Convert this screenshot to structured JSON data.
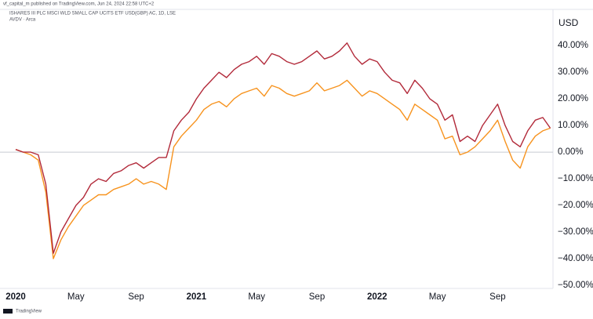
{
  "header": {
    "published": "vf_capital_m published on TradingView.com, Jun 24, 2024 22:58 UTC+2",
    "symbol": "ISHARES III PLC MSCI WLD SMALL CAP UCITS ETF USD(GBP) AC, 1D, LSE",
    "compare": "AVDV · Arca",
    "footer": "TradingView"
  },
  "chart_data": {
    "type": "line",
    "currency": "USD",
    "categories": [
      "2020",
      null,
      null,
      null,
      null,
      null,
      null,
      null,
      "May",
      null,
      null,
      null,
      null,
      null,
      null,
      null,
      "Sep",
      null,
      null,
      null,
      null,
      null,
      null,
      null,
      "2021",
      null,
      null,
      null,
      null,
      null,
      null,
      null,
      "May",
      null,
      null,
      null,
      null,
      null,
      null,
      null,
      "Sep",
      null,
      null,
      null,
      null,
      null,
      null,
      null,
      "2022",
      null,
      null,
      null,
      null,
      null,
      null,
      null,
      "May",
      null,
      null,
      null,
      null,
      null,
      null,
      null,
      "Sep",
      null,
      null,
      null,
      null,
      null,
      null,
      null
    ],
    "series": [
      {
        "name": "ISHARES III PLC MSCI WLD SMALL CAP UCITS ETF USD(GBP) AC",
        "color": "#b22a3a",
        "values": [
          1,
          0,
          0,
          -1,
          -12,
          -38,
          -30,
          -25,
          -20,
          -17,
          -12,
          -10,
          -11,
          -8,
          -7,
          -5,
          -4,
          -6,
          -4,
          -2,
          -2,
          8,
          12,
          15,
          20,
          24,
          27,
          30,
          28,
          31,
          33,
          34,
          36,
          33,
          37,
          36,
          34,
          33,
          34,
          36,
          38,
          35,
          36,
          38,
          41,
          36,
          33,
          35,
          34,
          30,
          27,
          26,
          22,
          27,
          24,
          20,
          18,
          12,
          14,
          4,
          6,
          4,
          10,
          14,
          18,
          10,
          4,
          2,
          8,
          12,
          13,
          9
        ]
      },
      {
        "name": "AVDV",
        "color": "#f7931e",
        "values": [
          1,
          0,
          -1,
          -3,
          -15,
          -40,
          -33,
          -28,
          -24,
          -20,
          -18,
          -16,
          -16,
          -14,
          -13,
          -12,
          -10,
          -12,
          -11,
          -12,
          -14,
          2,
          6,
          9,
          12,
          16,
          18,
          19,
          17,
          20,
          22,
          23,
          24,
          21,
          25,
          24,
          22,
          21,
          22,
          23,
          26,
          23,
          24,
          25,
          27,
          24,
          21,
          23,
          22,
          20,
          18,
          16,
          12,
          18,
          16,
          14,
          12,
          5,
          6,
          -1,
          0,
          2,
          5,
          8,
          12,
          4,
          -3,
          -6,
          2,
          6,
          8,
          9
        ]
      }
    ],
    "ylim": [
      -51,
      53
    ],
    "yticks": [
      {
        "value": 40,
        "label": "40.00%"
      },
      {
        "value": 30,
        "label": "30.00%"
      },
      {
        "value": 20,
        "label": "20.00%"
      },
      {
        "value": 10,
        "label": "10.00%"
      },
      {
        "value": 0,
        "label": "0.00%"
      },
      {
        "value": -10,
        "label": "−10.00%"
      },
      {
        "value": -20,
        "label": "−20.00%"
      },
      {
        "value": -30,
        "label": "−30.00%"
      },
      {
        "value": -40,
        "label": "−40.00%"
      },
      {
        "value": -50,
        "label": "−50.00%"
      }
    ],
    "grid": false
  }
}
